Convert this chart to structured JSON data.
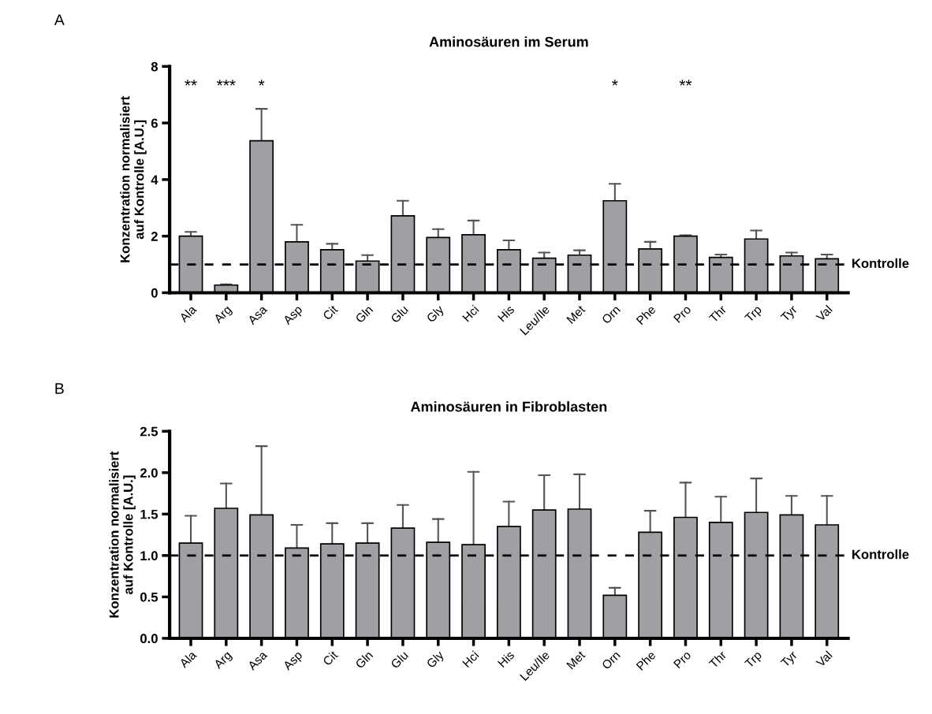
{
  "chart_data": [
    {
      "type": "bar",
      "title": "Aminosäuren im Serum",
      "ylabel": "Konzentration normalisiert\nauf Kontrolle [A.U.]",
      "categories": [
        "Ala",
        "Arg",
        "Asa",
        "Asp",
        "Cit",
        "Gln",
        "Glu",
        "Gly",
        "Hci",
        "His",
        "Leu/Ile",
        "Met",
        "Orn",
        "Phe",
        "Pro",
        "Thr",
        "Trp",
        "Tyr",
        "Val"
      ],
      "series": [
        {
          "color": "#a0a0a4",
          "values": [
            2.0,
            0.27,
            5.37,
            1.8,
            1.52,
            1.12,
            2.72,
            1.95,
            2.05,
            1.52,
            1.22,
            1.33,
            3.25,
            1.55,
            2.0,
            1.25,
            1.9,
            1.3,
            1.2
          ],
          "errors": [
            [
              2.0,
              2.15
            ],
            [
              0.27,
              0.3
            ],
            [
              5.37,
              6.5
            ],
            [
              1.8,
              2.4
            ],
            [
              1.52,
              1.73
            ],
            [
              1.12,
              1.33
            ],
            [
              2.72,
              3.25
            ],
            [
              1.95,
              2.25
            ],
            [
              2.05,
              2.55
            ],
            [
              1.52,
              1.85
            ],
            [
              1.22,
              1.42
            ],
            [
              1.33,
              1.5
            ],
            [
              3.25,
              3.85
            ],
            [
              1.55,
              1.8
            ],
            [
              2.0,
              2.03
            ],
            [
              1.25,
              1.35
            ],
            [
              1.9,
              2.2
            ],
            [
              1.3,
              1.42
            ],
            [
              1.2,
              1.35
            ]
          ]
        }
      ],
      "ylim": [
        0,
        8
      ],
      "yticks": [
        0,
        2,
        4,
        6,
        8
      ],
      "grid": false,
      "legend": false,
      "ref_lines": [
        {
          "axis": "y",
          "value": 1,
          "label": "Kontrolle",
          "color": "#000000",
          "line_style": "dashed"
        }
      ],
      "annotations": [
        "A",
        "**",
        "***",
        "*",
        "*",
        "**"
      ]
    },
    {
      "type": "bar",
      "title": "Aminosäuren in Fibroblasten",
      "ylabel": "Konzentration normalisiert\nauf Kontrolle [A.U.]",
      "categories": [
        "Ala",
        "Arg",
        "Asa",
        "Asp",
        "Cit",
        "Gln",
        "Glu",
        "Gly",
        "Hci",
        "His",
        "Leu/Ile",
        "Met",
        "Orn",
        "Phe",
        "Pro",
        "Thr",
        "Trp",
        "Tyr",
        "Val"
      ],
      "series": [
        {
          "color": "#a0a0a4",
          "values": [
            1.15,
            1.57,
            1.49,
            1.09,
            1.14,
            1.15,
            1.33,
            1.16,
            1.13,
            1.35,
            1.55,
            1.56,
            0.52,
            1.28,
            1.46,
            1.4,
            1.52,
            1.49,
            1.37
          ],
          "errors": [
            [
              1.15,
              1.48
            ],
            [
              1.57,
              1.87
            ],
            [
              1.49,
              2.32
            ],
            [
              1.09,
              1.37
            ],
            [
              1.14,
              1.39
            ],
            [
              1.15,
              1.39
            ],
            [
              1.33,
              1.61
            ],
            [
              1.16,
              1.44
            ],
            [
              1.13,
              2.01
            ],
            [
              1.35,
              1.65
            ],
            [
              1.55,
              1.97
            ],
            [
              1.56,
              1.98
            ],
            [
              0.52,
              0.61
            ],
            [
              1.28,
              1.54
            ],
            [
              1.46,
              1.88
            ],
            [
              1.4,
              1.71
            ],
            [
              1.52,
              1.93
            ],
            [
              1.49,
              1.72
            ],
            [
              1.37,
              1.72
            ]
          ]
        }
      ],
      "ylim": [
        0,
        2.5
      ],
      "yticks": [
        {
          "value": 0,
          "label": "0.0"
        },
        {
          "value": 0.5,
          "label": "0.5"
        },
        {
          "value": 1,
          "label": "1.0"
        },
        {
          "value": 1.5,
          "label": "1.5"
        },
        {
          "value": 2,
          "label": "2.0"
        },
        {
          "value": 2.5,
          "label": "2.5"
        }
      ],
      "grid": false,
      "legend": false,
      "ref_lines": [
        {
          "axis": "y",
          "value": 1,
          "label": "Kontrolle",
          "color": "#000000",
          "line_style": "dashed"
        }
      ],
      "annotations": [
        "B"
      ]
    }
  ]
}
